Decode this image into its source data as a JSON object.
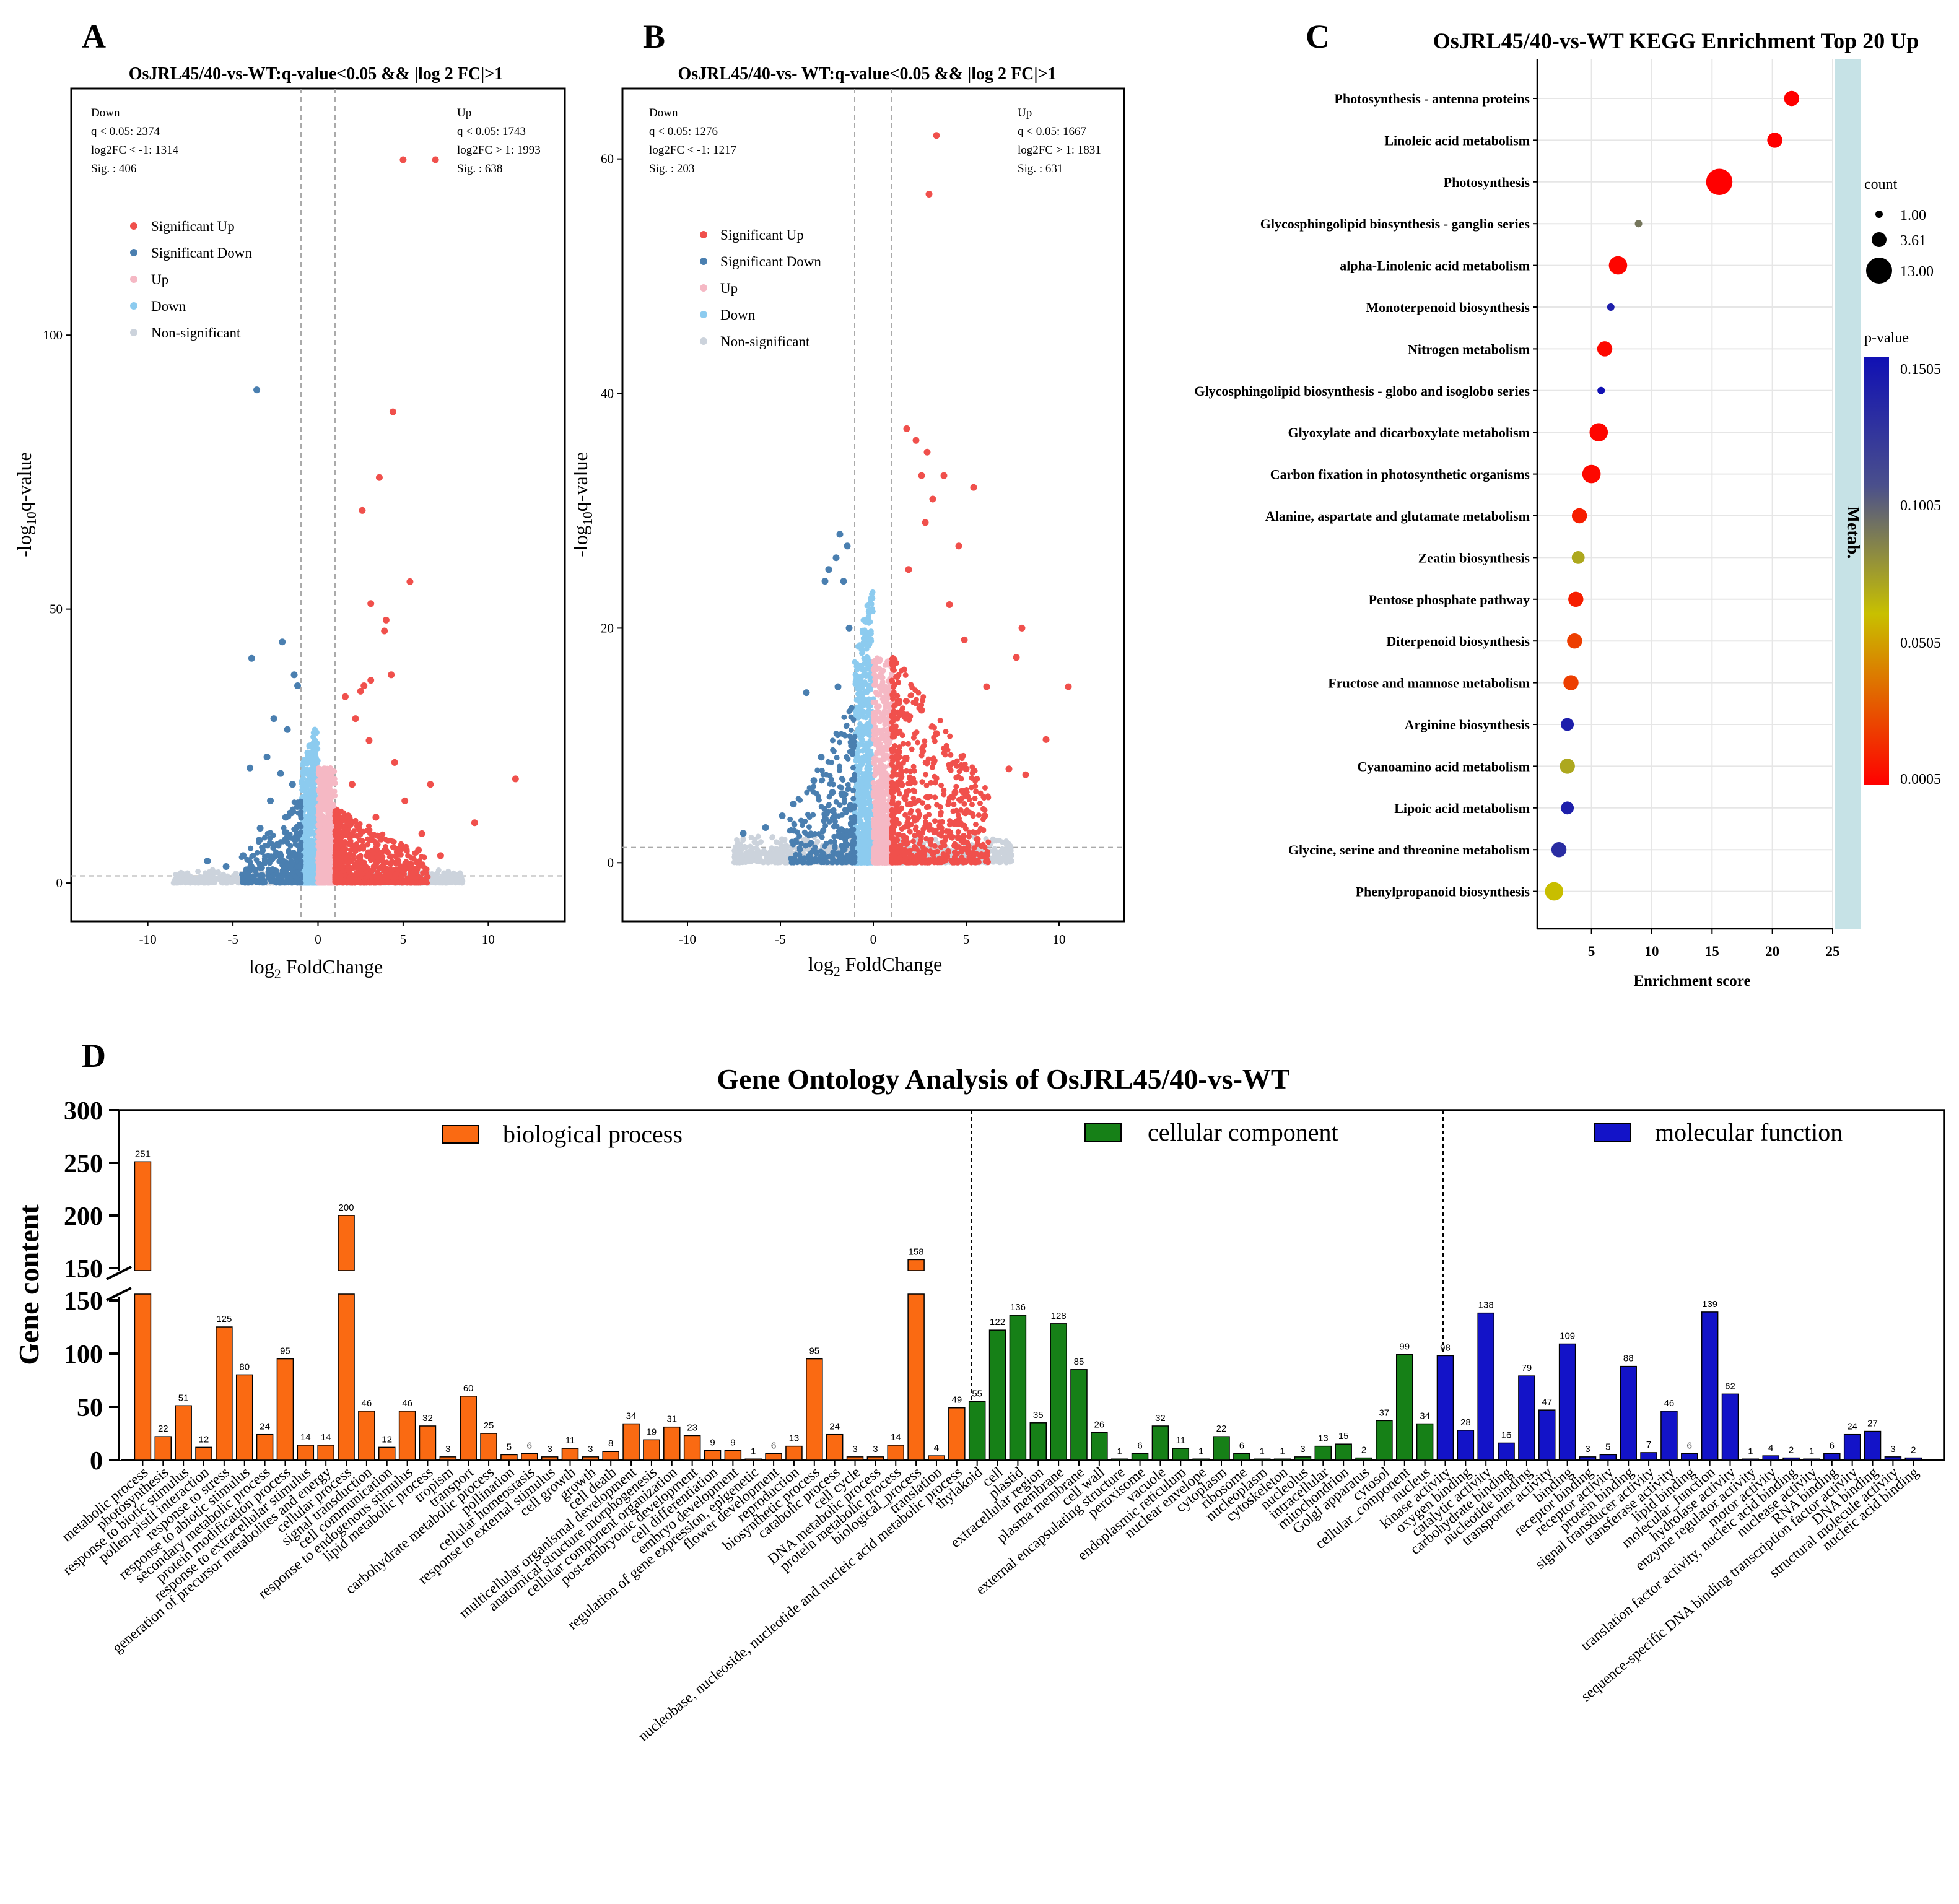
{
  "panels": {
    "A": {
      "letter": "A",
      "title": "OsJRL45/40-vs-WT:q-value<0.05 && |log 2 FC|>1",
      "down_stats": [
        "Down",
        "q < 0.05: 2374",
        "log2FC < -1: 1314",
        "Sig. : 406"
      ],
      "up_stats": [
        "Up",
        "q < 0.05: 1743",
        "log2FC > 1: 1993",
        "Sig. : 638"
      ],
      "legend": [
        "Significant Up",
        "Significant Down",
        "Up",
        "Down",
        "Non-significant"
      ],
      "xlabel_base": "log",
      "xlabel_sub": "2",
      "xlabel_rest": " FoldChange",
      "ylabel_base": "-log",
      "ylabel_sub": "10",
      "ylabel_rest": "q-value",
      "xticks": [
        -10,
        -5,
        0,
        5,
        10
      ],
      "yticks": [
        0,
        50,
        100
      ],
      "xlim": [
        -14.5,
        14.5
      ],
      "ylim": [
        -7,
        145
      ]
    },
    "B": {
      "letter": "B",
      "title": "OsJRL45/40-vs- WT:q-value<0.05 && |log 2 FC|>1",
      "down_stats": [
        "Down",
        "q < 0.05: 1276",
        "log2FC < -1: 1217",
        "Sig. : 203"
      ],
      "up_stats": [
        "Up",
        "q < 0.05: 1667",
        "log2FC > 1: 1831",
        "Sig. : 631"
      ],
      "legend": [
        "Significant Up",
        "Significant Down",
        "Up",
        "Down",
        "Non-significant"
      ],
      "xlabel_base": "log",
      "xlabel_sub": "2",
      "xlabel_rest": " FoldChange",
      "ylabel_base": "-log",
      "ylabel_sub": "10",
      "ylabel_rest": "q-value",
      "xticks": [
        -10,
        -5,
        0,
        5,
        10
      ],
      "yticks": [
        0,
        20,
        40,
        60
      ],
      "xlim": [
        -13.5,
        13.5
      ],
      "ylim": [
        -5,
        66
      ]
    },
    "C": {
      "letter": "C",
      "title": "OsJRL45/40-vs-WT KEGG Enrichment Top 20 Up",
      "xlabel": "Enrichment score",
      "side_label": "Metab.",
      "size_legend_title": "count",
      "size_legend": [
        "1.00",
        "3.61",
        "13.00"
      ],
      "color_legend_title": "p-value",
      "color_legend_ticks": [
        "0.1505",
        "0.1005",
        "0.0505",
        "0.0005"
      ],
      "xticks": [
        5,
        10,
        15,
        20,
        25
      ],
      "xlim": [
        0.5,
        25
      ]
    },
    "D": {
      "letter": "D",
      "title": "Gene Ontology Analysis of OsJRL45/40-vs-WT",
      "ylabel": "Gene content",
      "legend": [
        "biological process",
        "cellular component",
        "molecular function"
      ],
      "upper_ticks": [
        150,
        200,
        250,
        300
      ],
      "lower_ticks": [
        0,
        50,
        100,
        150
      ]
    }
  },
  "colors": {
    "sig_up": "#f0504c",
    "sig_down": "#4a7fb0",
    "up": "#f5b8c4",
    "down": "#8ccbef",
    "nonsig": "#ccd3dc",
    "bp": "#fa6a12",
    "cc": "#168017",
    "mf": "#1313c8",
    "metab_strip": "#c6e2e6"
  },
  "chart_data": [
    {
      "id": "A",
      "type": "scatter",
      "title": "OsJRL45/40-vs-WT:q-value<0.05 && |log 2 FC|>1",
      "xlabel": "log2 FoldChange",
      "ylabel": "-log10q-value",
      "xlim": [
        -14.5,
        14.5
      ],
      "ylim": [
        -7,
        145
      ],
      "thresholds": {
        "x": [
          -1,
          1
        ],
        "y": 1.3
      },
      "series": [
        {
          "name": "Significant Up",
          "points": [
            [
              5.0,
              132
            ],
            [
              6.9,
              132
            ],
            [
              4.4,
              86
            ],
            [
              3.6,
              74
            ],
            [
              2.6,
              68
            ],
            [
              5.4,
              55
            ],
            [
              3.1,
              51
            ],
            [
              4.0,
              48
            ],
            [
              3.9,
              46
            ],
            [
              4.3,
              38
            ],
            [
              3.1,
              37
            ],
            [
              2.7,
              36
            ],
            [
              2.5,
              35
            ],
            [
              1.6,
              34
            ],
            [
              2.2,
              30
            ],
            [
              6.6,
              18
            ],
            [
              11.6,
              19
            ],
            [
              9.2,
              11
            ],
            [
              3.0,
              26
            ],
            [
              4.5,
              22
            ],
            [
              2.0,
              18
            ],
            [
              5.1,
              15
            ],
            [
              3.4,
              12
            ],
            [
              6.1,
              9
            ],
            [
              1.8,
              12
            ],
            [
              2.4,
              10
            ],
            [
              3.7,
              8
            ],
            [
              5.9,
              6
            ],
            [
              7.2,
              5
            ],
            [
              1.5,
              6
            ],
            [
              2.9,
              5
            ],
            [
              4.7,
              4
            ],
            [
              1.3,
              4
            ],
            [
              2.2,
              3
            ],
            [
              3.3,
              3
            ]
          ]
        },
        {
          "name": "Significant Down",
          "points": [
            [
              -3.6,
              90
            ],
            [
              -2.1,
              44
            ],
            [
              -3.9,
              41
            ],
            [
              -1.4,
              38
            ],
            [
              -1.2,
              36
            ],
            [
              -2.6,
              30
            ],
            [
              -1.8,
              28
            ],
            [
              -3.0,
              23
            ],
            [
              -4.0,
              21
            ],
            [
              -2.2,
              20
            ],
            [
              -1.5,
              18
            ],
            [
              -2.8,
              15
            ],
            [
              -1.9,
              12
            ],
            [
              -3.4,
              10
            ],
            [
              -6.5,
              4
            ],
            [
              -5.4,
              3
            ],
            [
              -4.4,
              5
            ],
            [
              -1.3,
              8
            ],
            [
              -2.4,
              7
            ],
            [
              -1.6,
              5
            ],
            [
              -3.1,
              4
            ],
            [
              -1.1,
              3
            ]
          ]
        },
        {
          "name": "Up",
          "note": "dense band near log2FC 0 to 1, q-value 0 to 10"
        },
        {
          "name": "Down",
          "note": "dense band near log2FC -1 to 0, q-value 0 to 10"
        },
        {
          "name": "Non-significant",
          "note": "dense band along q-value ~0"
        }
      ]
    },
    {
      "id": "B",
      "type": "scatter",
      "title": "OsJRL45/40-vs- WT:q-value<0.05 && |log 2 FC|>1",
      "xlabel": "log2 FoldChange",
      "ylabel": "-log10q-value",
      "xlim": [
        -13.5,
        13.5
      ],
      "ylim": [
        -5,
        66
      ],
      "thresholds": {
        "x": [
          -1,
          1
        ],
        "y": 1.3
      },
      "series": [
        {
          "name": "Significant Up",
          "points": [
            [
              3.4,
              62
            ],
            [
              3.0,
              57
            ],
            [
              1.8,
              37
            ],
            [
              2.3,
              36
            ],
            [
              2.9,
              35
            ],
            [
              2.6,
              33
            ],
            [
              3.8,
              33
            ],
            [
              5.4,
              32
            ],
            [
              3.2,
              31
            ],
            [
              2.8,
              29
            ],
            [
              4.6,
              27
            ],
            [
              1.9,
              25
            ],
            [
              4.1,
              22
            ],
            [
              4.9,
              19
            ],
            [
              8.0,
              20
            ],
            [
              7.7,
              17.5
            ],
            [
              10.5,
              15
            ],
            [
              6.1,
              15
            ],
            [
              9.3,
              10.5
            ],
            [
              7.3,
              8
            ],
            [
              8.2,
              7.5
            ],
            [
              2.6,
              13
            ],
            [
              3.4,
              11
            ],
            [
              5.0,
              8
            ],
            [
              4.4,
              6
            ],
            [
              6.0,
              4
            ],
            [
              2.0,
              5
            ],
            [
              3.0,
              3
            ],
            [
              5.6,
              2
            ]
          ]
        },
        {
          "name": "Significant Down",
          "points": [
            [
              -1.8,
              28
            ],
            [
              -1.4,
              27
            ],
            [
              -2.0,
              26
            ],
            [
              -2.4,
              25
            ],
            [
              -2.6,
              24
            ],
            [
              -1.6,
              24
            ],
            [
              -3.6,
              14.5
            ],
            [
              -1.3,
              20
            ],
            [
              -2.8,
              9
            ],
            [
              -4.3,
              5
            ],
            [
              -5.8,
              3
            ],
            [
              -7.0,
              2.5
            ],
            [
              -4.9,
              4
            ],
            [
              -1.9,
              15
            ],
            [
              -3.2,
              7
            ],
            [
              -2.2,
              6
            ]
          ]
        },
        {
          "name": "Up",
          "note": "dense band near log2FC 0 to 1, q-value 0 to 20"
        },
        {
          "name": "Down",
          "note": "dense band near log2FC -1 to 0, q-value 0 to 20"
        },
        {
          "name": "Non-significant",
          "note": "dense band along q-value ~0"
        }
      ]
    },
    {
      "id": "C",
      "type": "scatter",
      "subtype": "bubble",
      "title": "OsJRL45/40-vs-WT KEGG Enrichment Top 20 Up",
      "xlabel": "Enrichment score",
      "xlim": [
        0.5,
        25
      ],
      "categories": [
        "Photosynthesis - antenna proteins",
        "Linoleic acid metabolism",
        "Photosynthesis",
        "Glycosphingolipid biosynthesis - ganglio series",
        "alpha-Linolenic acid metabolism",
        "Monoterpenoid biosynthesis",
        "Nitrogen metabolism",
        "Glycosphingolipid biosynthesis - globo and isoglobo series",
        "Glyoxylate and dicarboxylate metabolism",
        "Carbon fixation in photosynthetic organisms",
        "Alanine, aspartate and glutamate metabolism",
        "Zeatin biosynthesis",
        "Pentose phosphate pathway",
        "Diterpenoid biosynthesis",
        "Fructose and mannose metabolism",
        "Arginine biosynthesis",
        "Cyanoamino acid metabolism",
        "Lipoic acid metabolism",
        "Glycine, serine and threonine metabolism",
        "Phenylpropanoid biosynthesis"
      ],
      "enrichment_score": [
        21.6,
        20.2,
        15.6,
        8.9,
        7.2,
        6.6,
        6.1,
        5.8,
        5.6,
        5.0,
        4.0,
        3.9,
        3.7,
        3.6,
        3.3,
        3.0,
        3.0,
        3.0,
        2.3,
        1.9
      ],
      "count": [
        3,
        3,
        13,
        1,
        5,
        1,
        3,
        1,
        5,
        5,
        3,
        2,
        3,
        3,
        3,
        2,
        3,
        2,
        3,
        5
      ],
      "p_value": [
        0.0005,
        0.0005,
        0.0005,
        0.09,
        0.002,
        0.14,
        0.003,
        0.15,
        0.002,
        0.003,
        0.01,
        0.07,
        0.01,
        0.02,
        0.02,
        0.14,
        0.07,
        0.14,
        0.13,
        0.06
      ],
      "size_legend": {
        "title": "count",
        "values": [
          1.0,
          3.61,
          13.0
        ]
      },
      "color_legend": {
        "title": "p-value",
        "range": [
          0.0005,
          0.1505
        ]
      }
    },
    {
      "id": "D",
      "type": "bar",
      "title": "Gene Ontology Analysis of OsJRL45/40-vs-WT",
      "ylabel": "Gene content",
      "axis_break": [
        150,
        150
      ],
      "ylim_lower": [
        0,
        150
      ],
      "ylim_upper": [
        150,
        300
      ],
      "groups": [
        {
          "name": "biological process",
          "categories": [
            "metabolic process",
            "photosynthesis",
            "response to biotic stimulus",
            "pollen-pistil interaction",
            "response to stress",
            "response to abiotic stimulus",
            "secondary metabolic process",
            "protein modification process",
            "response to extracellular stimulus",
            "generation of precursor metabolites and energy",
            "cellular process",
            "signal transduction",
            "cell communication",
            "response to endogenous stimulus",
            "lipid metabolic process",
            "tropism",
            "transport",
            "carbohydrate metabolic process",
            "pollination",
            "cellular homeostasis",
            "response to external stimulus",
            "cell growth",
            "growth",
            "cell death",
            "multicellular organismal development",
            "anatomical structure morphogenesis",
            "cellular component organization",
            "post-embryonic development",
            "cell differentiation",
            "embryo development",
            "regulation of gene expression, epigenetic",
            "flower development",
            "reproduction",
            "biosynthetic process",
            "catabolic process",
            "cell cycle",
            "DNA metabolic process",
            "protein metabolic process",
            "biological_process",
            "translation",
            "nucleobase, nucleoside, nucleotide and nucleic acid metabolic process"
          ],
          "values": [
            251,
            22,
            51,
            12,
            125,
            80,
            24,
            95,
            14,
            14,
            200,
            46,
            12,
            46,
            32,
            3,
            60,
            25,
            5,
            6,
            3,
            11,
            3,
            8,
            34,
            19,
            31,
            23,
            9,
            9,
            1,
            6,
            13,
            95,
            24,
            3,
            3,
            14,
            158,
            4,
            49
          ]
        },
        {
          "name": "cellular component",
          "categories": [
            "thylakoid",
            "cell",
            "plastid",
            "extracellular region",
            "membrane",
            "plasma membrane",
            "cell wall",
            "external encapsulating structure",
            "peroxisome",
            "vacuole",
            "endoplasmic reticulum",
            "nuclear envelope",
            "cytoplasm",
            "ribosome",
            "nucleoplasm",
            "cytoskeleton",
            "nucleolus",
            "intracellular",
            "mitochondrion",
            "Golgi apparatus",
            "cytosol",
            "cellular_component",
            "nucleus"
          ],
          "values": [
            55,
            122,
            136,
            35,
            128,
            85,
            26,
            1,
            6,
            32,
            11,
            1,
            22,
            6,
            1,
            1,
            3,
            13,
            15,
            2,
            37,
            99,
            34
          ]
        },
        {
          "name": "molecular function",
          "categories": [
            "kinase activity",
            "oxygen binding",
            "catalytic activity",
            "carbohydrate binding",
            "nucleotide binding",
            "transporter activity",
            "binding",
            "receptor binding",
            "receptor activity",
            "protein binding",
            "signal transducer activity",
            "transferase activity",
            "lipid binding",
            "molecular_function",
            "hydrolase activity",
            "enzyme regulator activity",
            "motor activity",
            "translation factor activity, nucleic acid binding",
            "nuclease activity",
            "RNA binding",
            "sequence-specific DNA binding transcription factor activity",
            "DNA binding",
            "structural molecule activity",
            "nucleic acid binding"
          ],
          "values": [
            98,
            28,
            138,
            16,
            79,
            47,
            109,
            3,
            5,
            88,
            7,
            46,
            6,
            139,
            62,
            1,
            4,
            2,
            1,
            6,
            24,
            27,
            3,
            2
          ]
        }
      ]
    }
  ]
}
